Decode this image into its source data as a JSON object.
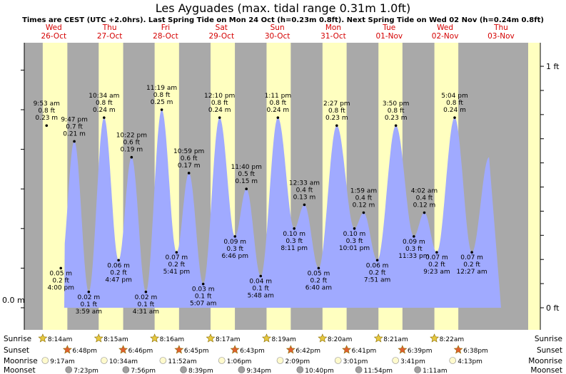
{
  "header": {
    "title": "Les Ayguades (max. tidal range 0.31m 1.0ft)",
    "subtitle": "Times are CEST (UTC +2.0hrs). Last Spring Tide on Mon 24 Oct (h=0.23m 0.8ft). Next Spring Tide on Wed 02 Nov (h=0.24m 0.8ft)"
  },
  "colors": {
    "night": "#a9a9a9",
    "day": "#ffffc0",
    "water": "#a0aaff",
    "day_label": "#d40000",
    "sun_icon": "#e6c840",
    "sunset_icon": "#e06030",
    "moon_rise": "#fffacd",
    "moon_set": "#a0a0a0"
  },
  "days": [
    {
      "dow": "Wed",
      "date": "26-Oct"
    },
    {
      "dow": "Thu",
      "date": "27-Oct"
    },
    {
      "dow": "Fri",
      "date": "28-Oct"
    },
    {
      "dow": "Sat",
      "date": "29-Oct"
    },
    {
      "dow": "Sun",
      "date": "30-Oct"
    },
    {
      "dow": "Mon",
      "date": "31-Oct"
    },
    {
      "dow": "Tue",
      "date": "01-Nov"
    },
    {
      "dow": "Wed",
      "date": "02-Nov"
    },
    {
      "dow": "Thu",
      "date": "03-Nov"
    }
  ],
  "chart_data": {
    "type": "area",
    "y_unit_left": "m",
    "y_unit_right": "ft",
    "left_ticks": [
      {
        "value": 0.0,
        "label": "0.0 m"
      }
    ],
    "right_ticks": [
      {
        "value": 0.0,
        "label": "0 ft"
      },
      {
        "value": 0.3048,
        "label": "1 ft"
      }
    ],
    "ylim": [
      -0.01,
      0.31
    ],
    "tides": [
      {
        "date": "26-Oct",
        "time": "9:53 am",
        "ft": "0.8 ft",
        "m": "0.23 m",
        "value": 0.23,
        "type": "high"
      },
      {
        "date": "26-Oct",
        "time": "4:00 pm",
        "ft": "0.2 ft",
        "m": "0.05 m",
        "value": 0.05,
        "type": "low"
      },
      {
        "date": "26-Oct",
        "time": "9:47 pm",
        "ft": "0.7 ft",
        "m": "0.21 m",
        "value": 0.21,
        "type": "high"
      },
      {
        "date": "27-Oct",
        "time": "3:59 am",
        "ft": "0.1 ft",
        "m": "0.02 m",
        "value": 0.02,
        "type": "low"
      },
      {
        "date": "27-Oct",
        "time": "10:34 am",
        "ft": "0.8 ft",
        "m": "0.24 m",
        "value": 0.24,
        "type": "high"
      },
      {
        "date": "27-Oct",
        "time": "4:47 pm",
        "ft": "0.2 ft",
        "m": "0.06 m",
        "value": 0.06,
        "type": "low"
      },
      {
        "date": "27-Oct",
        "time": "10:22 pm",
        "ft": "0.6 ft",
        "m": "0.19 m",
        "value": 0.19,
        "type": "high"
      },
      {
        "date": "28-Oct",
        "time": "4:31 am",
        "ft": "0.1 ft",
        "m": "0.02 m",
        "value": 0.02,
        "type": "low"
      },
      {
        "date": "28-Oct",
        "time": "11:19 am",
        "ft": "0.8 ft",
        "m": "0.25 m",
        "value": 0.25,
        "type": "high"
      },
      {
        "date": "28-Oct",
        "time": "5:41 pm",
        "ft": "0.2 ft",
        "m": "0.07 m",
        "value": 0.07,
        "type": "low"
      },
      {
        "date": "28-Oct",
        "time": "10:59 pm",
        "ft": "0.6 ft",
        "m": "0.17 m",
        "value": 0.17,
        "type": "high"
      },
      {
        "date": "29-Oct",
        "time": "5:07 am",
        "ft": "0.1 ft",
        "m": "0.03 m",
        "value": 0.03,
        "type": "low"
      },
      {
        "date": "29-Oct",
        "time": "12:10 pm",
        "ft": "0.8 ft",
        "m": "0.24 m",
        "value": 0.24,
        "type": "high"
      },
      {
        "date": "29-Oct",
        "time": "6:46 pm",
        "ft": "0.3 ft",
        "m": "0.09 m",
        "value": 0.09,
        "type": "low"
      },
      {
        "date": "29-Oct",
        "time": "11:40 pm",
        "ft": "0.5 ft",
        "m": "0.15 m",
        "value": 0.15,
        "type": "high"
      },
      {
        "date": "30-Oct",
        "time": "5:48 am",
        "ft": "0.1 ft",
        "m": "0.04 m",
        "value": 0.04,
        "type": "low"
      },
      {
        "date": "30-Oct",
        "time": "1:11 pm",
        "ft": "0.8 ft",
        "m": "0.24 m",
        "value": 0.24,
        "type": "high"
      },
      {
        "date": "30-Oct",
        "time": "8:11 pm",
        "ft": "0.3 ft",
        "m": "0.10 m",
        "value": 0.1,
        "type": "low"
      },
      {
        "date": "31-Oct",
        "time": "12:33 am",
        "ft": "0.4 ft",
        "m": "0.13 m",
        "value": 0.13,
        "type": "high"
      },
      {
        "date": "31-Oct",
        "time": "6:40 am",
        "ft": "0.2 ft",
        "m": "0.05 m",
        "value": 0.05,
        "type": "low"
      },
      {
        "date": "31-Oct",
        "time": "2:27 pm",
        "ft": "0.8 ft",
        "m": "0.23 m",
        "value": 0.23,
        "type": "high"
      },
      {
        "date": "31-Oct",
        "time": "10:01 pm",
        "ft": "0.3 ft",
        "m": "0.10 m",
        "value": 0.1,
        "type": "low"
      },
      {
        "date": "01-Nov",
        "time": "1:59 am",
        "ft": "0.4 ft",
        "m": "0.12 m",
        "value": 0.12,
        "type": "high"
      },
      {
        "date": "01-Nov",
        "time": "7:51 am",
        "ft": "0.2 ft",
        "m": "0.06 m",
        "value": 0.06,
        "type": "low"
      },
      {
        "date": "01-Nov",
        "time": "3:50 pm",
        "ft": "0.8 ft",
        "m": "0.23 m",
        "value": 0.23,
        "type": "high"
      },
      {
        "date": "01-Nov",
        "time": "11:33 pm",
        "ft": "0.3 ft",
        "m": "0.09 m",
        "value": 0.09,
        "type": "low"
      },
      {
        "date": "02-Nov",
        "time": "4:02 am",
        "ft": "0.4 ft",
        "m": "0.12 m",
        "value": 0.12,
        "type": "high"
      },
      {
        "date": "02-Nov",
        "time": "9:23 am",
        "ft": "0.2 ft",
        "m": "0.07 m",
        "value": 0.07,
        "type": "low"
      },
      {
        "date": "02-Nov",
        "time": "5:04 pm",
        "ft": "0.8 ft",
        "m": "0.24 m",
        "value": 0.24,
        "type": "high"
      },
      {
        "date": "03-Nov",
        "time": "12:27 am",
        "ft": "0.2 ft",
        "m": "0.07 m",
        "value": 0.07,
        "type": "low"
      }
    ]
  },
  "astro": {
    "row_labels": {
      "sunrise": "Sunrise",
      "sunset": "Sunset",
      "moonrise": "Moonrise",
      "moonset": "Moonset"
    },
    "sunrise": [
      {
        "date": "26-Oct",
        "time": "8:14am"
      },
      {
        "date": "27-Oct",
        "time": "8:15am"
      },
      {
        "date": "28-Oct",
        "time": "8:16am"
      },
      {
        "date": "29-Oct",
        "time": "8:17am"
      },
      {
        "date": "30-Oct",
        "time": "8:19am"
      },
      {
        "date": "31-Oct",
        "time": "8:20am"
      },
      {
        "date": "01-Nov",
        "time": "8:21am"
      },
      {
        "date": "02-Nov",
        "time": "8:22am"
      }
    ],
    "sunset": [
      {
        "date": "26-Oct",
        "time": "6:48pm"
      },
      {
        "date": "27-Oct",
        "time": "6:46pm"
      },
      {
        "date": "28-Oct",
        "time": "6:45pm"
      },
      {
        "date": "29-Oct",
        "time": "6:43pm"
      },
      {
        "date": "30-Oct",
        "time": "6:42pm"
      },
      {
        "date": "31-Oct",
        "time": "6:41pm"
      },
      {
        "date": "01-Nov",
        "time": "6:39pm"
      },
      {
        "date": "02-Nov",
        "time": "6:38pm"
      }
    ],
    "moonrise": [
      {
        "date": "26-Oct",
        "time": "9:17am"
      },
      {
        "date": "27-Oct",
        "time": "10:34am"
      },
      {
        "date": "28-Oct",
        "time": "11:52am"
      },
      {
        "date": "29-Oct",
        "time": "1:06pm"
      },
      {
        "date": "30-Oct",
        "time": "2:09pm"
      },
      {
        "date": "31-Oct",
        "time": "3:01pm"
      },
      {
        "date": "01-Nov",
        "time": "3:41pm"
      },
      {
        "date": "02-Nov",
        "time": "4:13pm"
      }
    ],
    "moonset": [
      {
        "date": "26-Oct",
        "time": "7:23pm"
      },
      {
        "date": "27-Oct",
        "time": "7:56pm"
      },
      {
        "date": "28-Oct",
        "time": "8:39pm"
      },
      {
        "date": "29-Oct",
        "time": "9:34pm"
      },
      {
        "date": "30-Oct",
        "time": "10:40pm"
      },
      {
        "date": "31-Oct",
        "time": "11:54pm"
      },
      {
        "date": "02-Nov",
        "time": "1:11am"
      }
    ]
  }
}
